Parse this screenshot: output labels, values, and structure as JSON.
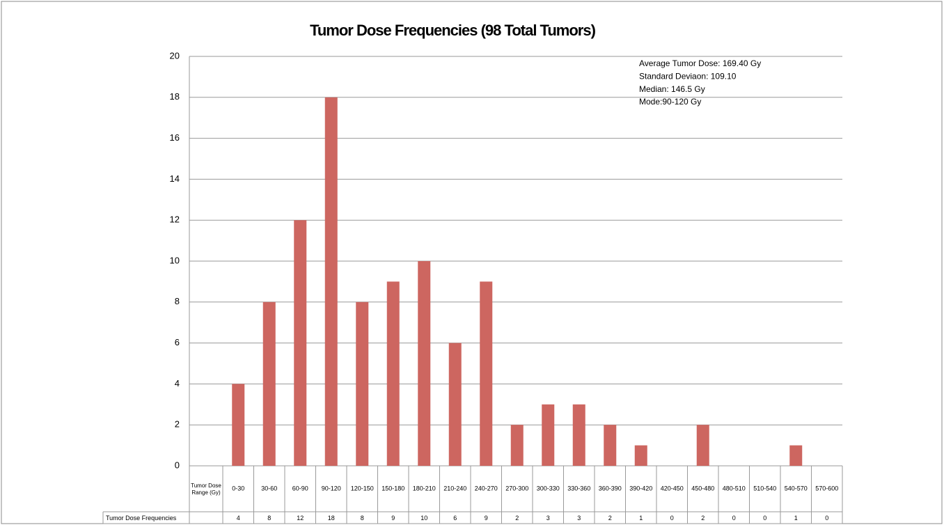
{
  "chart_data": {
    "type": "bar",
    "title": "Tumor Dose Frequencies (98 Total Tumors)",
    "x_label": "Tumor Dose Range (Gy)",
    "categories": [
      "0-30",
      "30-60",
      "60-90",
      "90-120",
      "120-150",
      "150-180",
      "180-210",
      "210-240",
      "240-270",
      "270-300",
      "300-330",
      "330-360",
      "360-390",
      "390-420",
      "420-450",
      "450-480",
      "480-510",
      "510-540",
      "540-570",
      "570-600"
    ],
    "series": [
      {
        "name": "Tumor Dose Frequencies",
        "color": "#cd6660",
        "values": [
          4,
          8,
          12,
          18,
          8,
          9,
          10,
          6,
          9,
          2,
          3,
          3,
          2,
          1,
          0,
          2,
          0,
          0,
          1,
          0
        ]
      }
    ],
    "ylim": [
      0,
      20
    ],
    "yticks": [
      0,
      2,
      4,
      6,
      8,
      10,
      12,
      14,
      16,
      18,
      20
    ],
    "grid": true,
    "annotations": [
      "Average Tumor Dose: 169.40 Gy",
      "Standard Deviaon: 109.10",
      "Median: 146.5 Gy",
      "Mode:90-120 Gy"
    ]
  }
}
